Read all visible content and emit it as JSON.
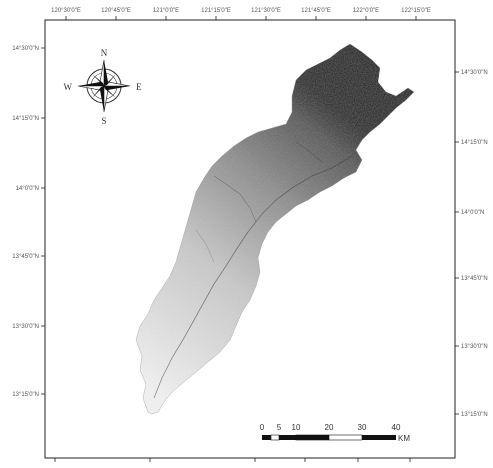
{
  "map": {
    "top_ticks": [
      "120°30'0\"E",
      "120°45'0\"E",
      "121°0'0\"E",
      "121°15'0\"E",
      "121°30'0\"E",
      "121°45'0\"E",
      "122°0'0\"E",
      "122°15'0\"E"
    ],
    "left_ticks": [
      "14°30'0\"N",
      "14°15'0\"N",
      "14°0'0\"N",
      "13°45'0\"N",
      "13°30'0\"N",
      "13°15'0\"N"
    ],
    "right_ticks": [
      "14°30'0\"N",
      "14°15'0\"N",
      "14°0'0\"N",
      "13°45'0\"N",
      "13°30'0\"N",
      "13°15'0\"N"
    ],
    "compass": {
      "n": "N",
      "s": "S",
      "e": "E",
      "w": "W"
    },
    "scale_bar": {
      "labels": [
        "0",
        "5",
        "10",
        "20",
        "30",
        "40"
      ],
      "unit": "KM"
    },
    "colors": {
      "elevation_high": "#1a1a1a",
      "elevation_low": "#f2f2f2",
      "frame": "#222222"
    }
  }
}
